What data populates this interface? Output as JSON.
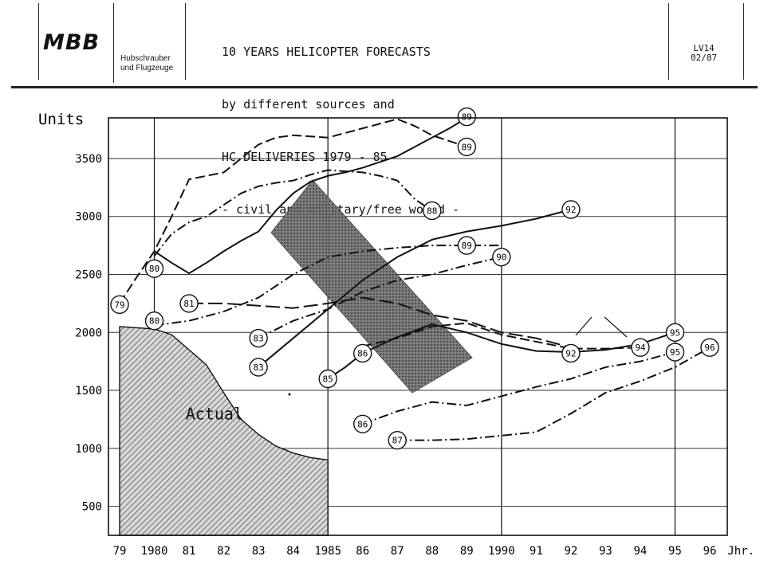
{
  "header": {
    "logo": "MBB",
    "company_line1": "Hubschrauber",
    "company_line2": "und Flugzeuge",
    "title_lines": [
      "10 YEARS HELICOPTER FORECASTS",
      "by different sources and",
      "HC DELIVERIES 1979 - 85",
      "- civil and military/free world -"
    ],
    "code_line1": "LV14",
    "code_line2": "02/87"
  },
  "chart_data": {
    "type": "line",
    "ylabel": "Units",
    "xlabel": "Jhr.",
    "x_ticks": [
      "79",
      "1980",
      "81",
      "82",
      "83",
      "84",
      "1985",
      "86",
      "87",
      "88",
      "89",
      "1990",
      "91",
      "92",
      "93",
      "94",
      "95",
      "96"
    ],
    "y_ticks": [
      500,
      1000,
      1500,
      2000,
      2500,
      3000,
      3500
    ],
    "xlim": [
      1979,
      1996
    ],
    "ylim": [
      250,
      3850
    ],
    "actual": {
      "label": "Actual",
      "x": [
        1979,
        1980,
        1980.5,
        1981,
        1981.5,
        1982,
        1982.5,
        1983,
        1983.5,
        1984,
        1984.5,
        1985
      ],
      "y": [
        2050,
        2030,
        1980,
        1850,
        1720,
        1480,
        1250,
        1120,
        1020,
        960,
        920,
        900
      ]
    },
    "series": [
      {
        "label": "79",
        "style": "dash",
        "x": [
          1979,
          1979.5,
          1980,
          1980.5,
          1981,
          1981.5,
          1982,
          1982.5,
          1983,
          1983.5,
          1984,
          1984.5,
          1985,
          1985.5,
          1986,
          1986.5,
          1987,
          1987.5,
          1988,
          1988.5,
          1989
        ],
        "y": [
          2250,
          2480,
          2700,
          3000,
          3320,
          3350,
          3380,
          3500,
          3620,
          3680,
          3700,
          3690,
          3680,
          3720,
          3760,
          3800,
          3840,
          3780,
          3700,
          3650,
          3600
        ]
      },
      {
        "label": "80",
        "style": "solid",
        "x": [
          1980,
          1980.5,
          1981,
          1981.5,
          1982,
          1982.5,
          1983,
          1983.5,
          1984,
          1984.5,
          1985,
          1985.5,
          1986,
          1986.5,
          1987,
          1987.5,
          1988,
          1988.5,
          1989
        ],
        "y": [
          2700,
          2600,
          2510,
          2600,
          2700,
          2790,
          2870,
          3050,
          3200,
          3300,
          3350,
          3380,
          3420,
          3470,
          3520,
          3600,
          3680,
          3760,
          3850
        ]
      },
      {
        "label": "80",
        "style": "dashdot",
        "x": [
          1980,
          1980.5,
          1981,
          1981.5,
          1982,
          1982.5,
          1983,
          1983.5,
          1984,
          1984.5,
          1985,
          1985.5,
          1986,
          1986.5,
          1987,
          1987.5,
          1988
        ],
        "y": [
          2660,
          2850,
          2950,
          3000,
          3100,
          3200,
          3260,
          3290,
          3310,
          3360,
          3400,
          3390,
          3380,
          3350,
          3310,
          3150,
          3050
        ]
      },
      {
        "label": "81",
        "style": "longdash",
        "x": [
          1981,
          1982,
          1983,
          1984,
          1985,
          1986,
          1987,
          1988,
          1989,
          1990,
          1991,
          1992
        ],
        "y": [
          2250,
          2250,
          2230,
          2210,
          2250,
          2300,
          2250,
          2150,
          2100,
          2000,
          1950,
          1870
        ]
      },
      {
        "label": "80",
        "style": "dashdot",
        "x": [
          1980,
          1981,
          1982,
          1983,
          1984,
          1985,
          1986,
          1987,
          1988,
          1989,
          1990
        ],
        "y": [
          2060,
          2100,
          2180,
          2300,
          2500,
          2650,
          2700,
          2730,
          2750,
          2750,
          2750
        ]
      },
      {
        "label": "83",
        "style": "dashdot",
        "x": [
          1983,
          1984,
          1985,
          1986,
          1987,
          1988,
          1989,
          1990
        ],
        "y": [
          1950,
          2100,
          2200,
          2350,
          2450,
          2500,
          2580,
          2650
        ]
      },
      {
        "label": "83",
        "style": "solid",
        "x": [
          1983,
          1984,
          1985,
          1986,
          1987,
          1988,
          1989,
          1990,
          1991,
          1992
        ],
        "y": [
          1700,
          1950,
          2200,
          2450,
          2650,
          2800,
          2870,
          2920,
          2980,
          3060
        ]
      },
      {
        "label": "85",
        "style": "solid",
        "x": [
          1985,
          1985.5,
          1986,
          1987,
          1988,
          1989,
          1990,
          1991,
          1992,
          1993,
          1994,
          1995
        ],
        "y": [
          1600,
          1700,
          1820,
          1960,
          2070,
          2000,
          1900,
          1840,
          1830,
          1850,
          1900,
          2000
        ]
      },
      {
        "label": "86",
        "style": "dash",
        "x": [
          1986,
          1987,
          1988,
          1989,
          1990,
          1991,
          1992,
          1993,
          1994
        ],
        "y": [
          1880,
          1950,
          2050,
          2080,
          1980,
          1920,
          1860,
          1860,
          1870
        ]
      },
      {
        "label": "86",
        "style": "dashdot",
        "x": [
          1986,
          1987,
          1988,
          1989,
          1990,
          1991,
          1992,
          1993,
          1994,
          1995
        ],
        "y": [
          1210,
          1320,
          1400,
          1370,
          1450,
          1530,
          1600,
          1700,
          1750,
          1830
        ]
      },
      {
        "label": "87",
        "style": "dashdot",
        "x": [
          1987,
          1988,
          1989,
          1990,
          1991,
          1992,
          1993,
          1994,
          1995,
          1996
        ],
        "y": [
          1070,
          1070,
          1080,
          1110,
          1140,
          1300,
          1480,
          1580,
          1700,
          1870
        ]
      }
    ],
    "end_labels": [
      {
        "text": "79",
        "x": 1979,
        "y": 2240
      },
      {
        "text": "80",
        "x": 1980,
        "y": 2550
      },
      {
        "text": "80",
        "x": 1980,
        "y": 2100
      },
      {
        "text": "81",
        "x": 1981,
        "y": 2250
      },
      {
        "text": "83",
        "x": 1983,
        "y": 1950
      },
      {
        "text": "83",
        "x": 1983,
        "y": 1700
      },
      {
        "text": "85",
        "x": 1985,
        "y": 1600
      },
      {
        "text": "86",
        "x": 1986,
        "y": 1820
      },
      {
        "text": "86",
        "x": 1986,
        "y": 1210
      },
      {
        "text": "87",
        "x": 1987,
        "y": 1070
      },
      {
        "text": "88",
        "x": 1988,
        "y": 3050
      },
      {
        "text": "89",
        "x": 1989,
        "y": 3860
      },
      {
        "text": "89",
        "x": 1989,
        "y": 3600
      },
      {
        "text": "89",
        "x": 1989,
        "y": 2750
      },
      {
        "text": "90",
        "x": 1990,
        "y": 2650
      },
      {
        "text": "92",
        "x": 1992,
        "y": 3060
      },
      {
        "text": "92",
        "x": 1992,
        "y": 1820
      },
      {
        "text": "94",
        "x": 1994,
        "y": 1870
      },
      {
        "text": "95",
        "x": 1995,
        "y": 2000
      },
      {
        "text": "95",
        "x": 1995,
        "y": 1830
      },
      {
        "text": "96",
        "x": 1996,
        "y": 1870
      }
    ]
  }
}
